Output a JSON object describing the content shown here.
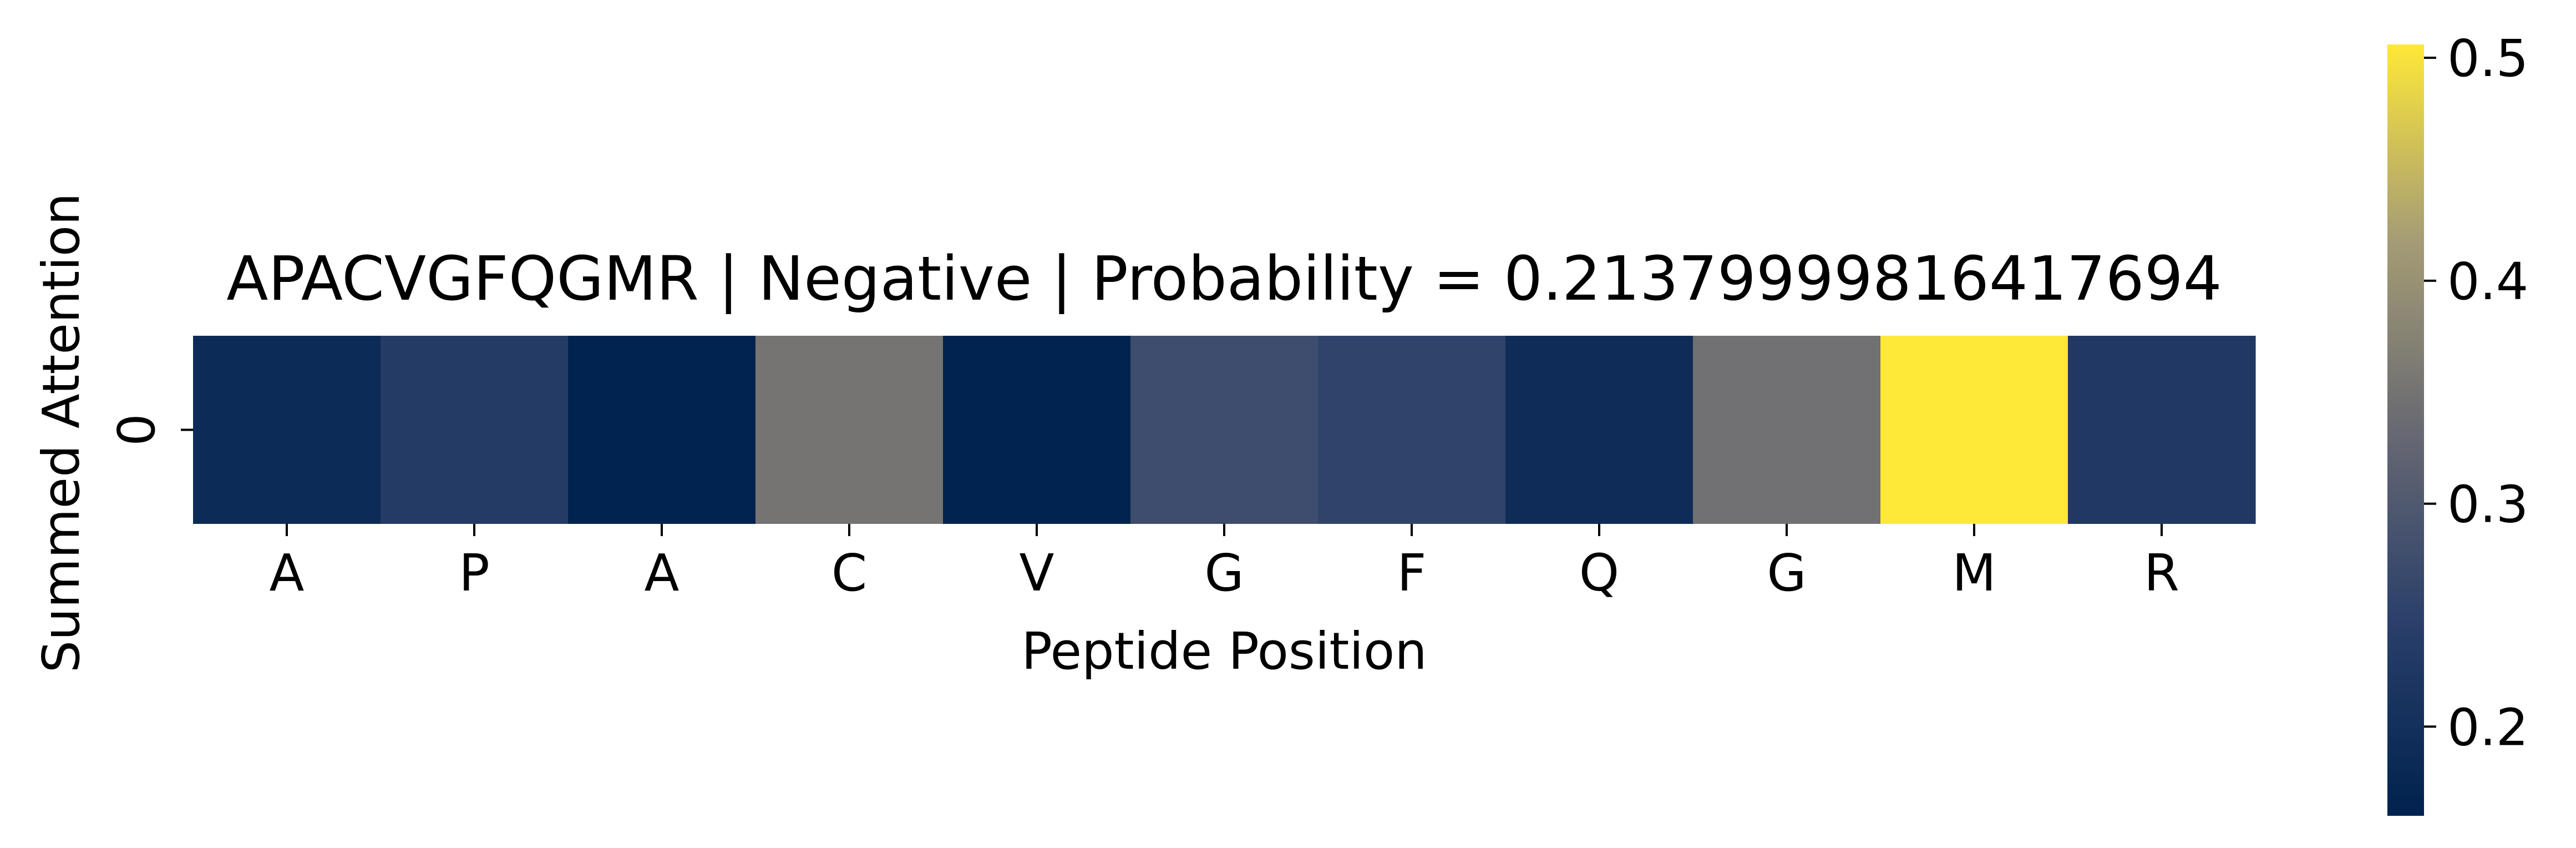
{
  "chart_data": {
    "type": "heatmap",
    "title": "APACVGFQGMR | Negative | Probability = 0.21379999816417694",
    "xlabel": "Peptide Position",
    "ylabel": "Summed Attention",
    "x_tick_labels": [
      "A",
      "P",
      "A",
      "C",
      "V",
      "G",
      "F",
      "Q",
      "G",
      "M",
      "R"
    ],
    "y_tick_labels": [
      "0"
    ],
    "values": [
      [
        0.187,
        0.235,
        0.162,
        0.352,
        0.163,
        0.275,
        0.254,
        0.19,
        0.345,
        0.506,
        0.225
      ]
    ],
    "colormap": "cividis",
    "colorbar": {
      "vmin": 0.16,
      "vmax": 0.506,
      "ticks": [
        0.2,
        0.3,
        0.4,
        0.5
      ],
      "tick_labels": [
        "0.2",
        "0.3",
        "0.4",
        "0.5"
      ]
    },
    "grid": false,
    "legend": "none"
  }
}
